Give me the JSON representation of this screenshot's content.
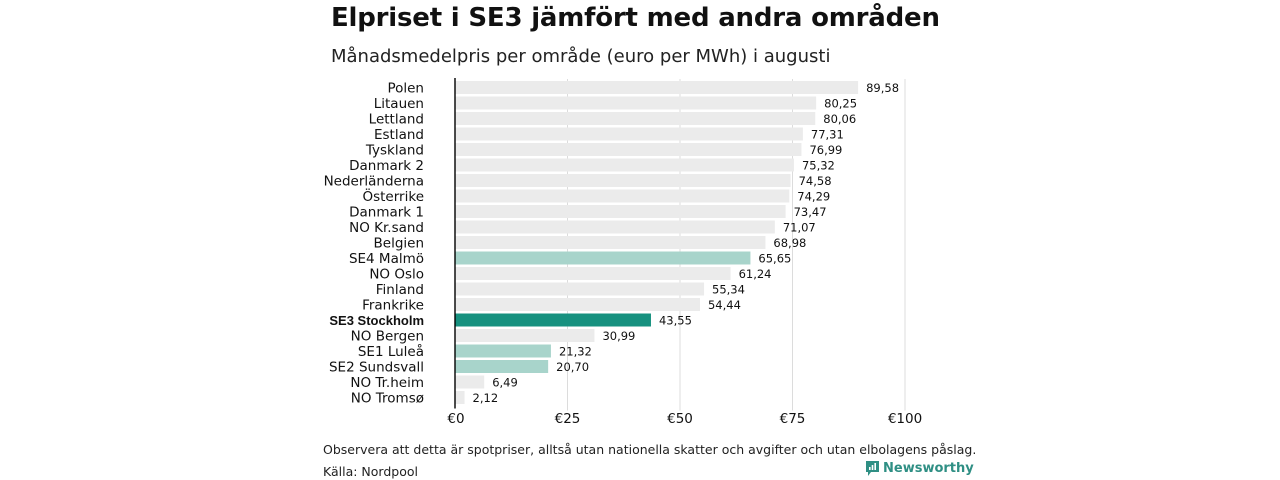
{
  "title": "Elpriset i SE3 jämfört med andra områden",
  "subtitle": "Månadsmedelpris per område (euro per MWh) i augusti",
  "footnote": "Observera att detta är spotpriser, alltså utan nationella skatter och avgifter och utan elbolagens påslag.",
  "source": "Källa: Nordpool",
  "logo_text": "Newsworthy",
  "colors": {
    "default_bar": "#ebebeb",
    "swedish_bar": "#a8d4cb",
    "highlight_bar": "#17917f",
    "grid": "#dcdcdc",
    "axis": "#000000"
  },
  "chart_data": {
    "type": "bar",
    "orientation": "horizontal",
    "categories": [
      "Polen",
      "Litauen",
      "Lettland",
      "Estland",
      "Tyskland",
      "Danmark  2",
      "Nederländerna",
      "Österrike",
      "Danmark  1",
      "NO Kr.sand",
      "Belgien",
      "SE4  Malmö",
      "NO Oslo",
      "Finland",
      "Frankrike",
      "SE3 Stockholm",
      "NO Bergen",
      "SE1  Luleå",
      "SE2  Sundsvall",
      "NO Tr.heim",
      "NO Tromsø"
    ],
    "values": [
      89.58,
      80.25,
      80.06,
      77.31,
      76.99,
      75.32,
      74.58,
      74.29,
      73.47,
      71.07,
      68.98,
      65.65,
      61.24,
      55.34,
      54.44,
      43.55,
      30.99,
      21.32,
      20.7,
      6.49,
      2.12
    ],
    "value_labels": [
      "89,58",
      "80,25",
      "80,06",
      "77,31",
      "76,99",
      "75,32",
      "74,58",
      "74,29",
      "73,47",
      "71,07",
      "68,98",
      "65,65",
      "61,24",
      "55,34",
      "54,44",
      "43,55",
      "30,99",
      "21,32",
      "20,70",
      "6,49",
      "2,12"
    ],
    "bar_kind": [
      "default",
      "default",
      "default",
      "default",
      "default",
      "default",
      "default",
      "default",
      "default",
      "default",
      "default",
      "swedish",
      "default",
      "default",
      "default",
      "highlight",
      "default",
      "swedish",
      "swedish",
      "default",
      "default"
    ],
    "highlight_category": "SE3 Stockholm",
    "x_ticks": [
      0,
      25,
      50,
      75,
      100
    ],
    "x_tick_labels": [
      "€0",
      "€25",
      "€50",
      "€75",
      "€100"
    ],
    "xlim": [
      0,
      100
    ],
    "grid": true
  }
}
